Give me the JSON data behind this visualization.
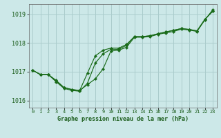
{
  "title": "Graphe pression niveau de la mer (hPa)",
  "background_color": "#cce8e8",
  "grid_color": "#aacccc",
  "line_color": "#1a6b1a",
  "xlim": [
    -0.5,
    23.5
  ],
  "ylim": [
    1015.75,
    1019.35
  ],
  "yticks": [
    1016,
    1017,
    1018,
    1019
  ],
  "xtick_labels": [
    "0",
    "1",
    "2",
    "3",
    "4",
    "5",
    "6",
    "7",
    "8",
    "9",
    "10",
    "11",
    "12",
    "13",
    "14",
    "15",
    "16",
    "17",
    "18",
    "19",
    "20",
    "21",
    "22",
    "23"
  ],
  "series1": [
    1017.05,
    1016.9,
    1016.9,
    1016.7,
    1016.45,
    1016.38,
    1016.35,
    1016.55,
    1016.75,
    1017.1,
    1017.72,
    1017.75,
    1017.85,
    1018.2,
    1018.2,
    1018.22,
    1018.3,
    1018.35,
    1018.4,
    1018.48,
    1018.45,
    1018.4,
    1018.8,
    1019.15
  ],
  "series2": [
    1017.05,
    1016.9,
    1016.9,
    1016.65,
    1016.42,
    1016.35,
    1016.32,
    1016.6,
    1017.3,
    1017.62,
    1017.78,
    1017.78,
    1017.92,
    1018.22,
    1018.22,
    1018.25,
    1018.32,
    1018.38,
    1018.44,
    1018.5,
    1018.47,
    1018.42,
    1018.82,
    1019.1
  ],
  "series3": [
    1017.05,
    1016.9,
    1016.9,
    1016.68,
    1016.45,
    1016.38,
    1016.34,
    1016.95,
    1017.55,
    1017.75,
    1017.82,
    1017.82,
    1017.95,
    1018.22,
    1018.22,
    1018.25,
    1018.32,
    1018.38,
    1018.44,
    1018.5,
    1018.47,
    1018.42,
    1018.82,
    1019.1
  ]
}
